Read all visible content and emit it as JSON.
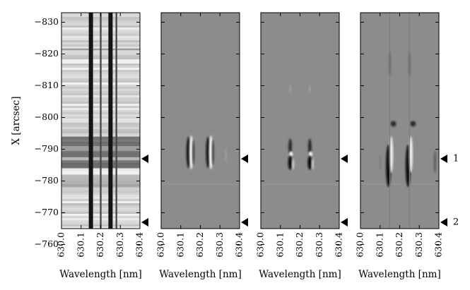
{
  "chart_data": [
    {
      "type": "heatmap",
      "panel": 1,
      "title": "",
      "xlabel": "Wavelength [nm]",
      "ylabel": "X [arcsec]",
      "xlim": [
        630.0,
        630.4
      ],
      "ylim": [
        -765,
        -833
      ],
      "x_ticks": [
        "630.0",
        "630.1",
        "630.2",
        "630.3",
        "630.4"
      ],
      "y_ticks": [
        "−830",
        "−820",
        "−810",
        "−800",
        "−790",
        "−780",
        "−770",
        "−760"
      ],
      "y_tick_values": [
        -830,
        -820,
        -810,
        -800,
        -790,
        -780,
        -770,
        -760
      ],
      "absorption_lines_nm": [
        630.15,
        630.25
      ],
      "telluric_lines_nm": [
        630.2,
        630.28
      ],
      "dark_band_arcsec": [
        -794,
        -784
      ],
      "markers": [
        {
          "y": -787,
          "label": ""
        },
        {
          "y": -767,
          "label": ""
        }
      ]
    },
    {
      "type": "heatmap",
      "panel": 2,
      "title": "",
      "xlabel": "Wavelength [nm]",
      "xlim": [
        630.0,
        630.4
      ],
      "x_ticks": [
        "630.0",
        "630.1",
        "630.2",
        "630.3",
        "630.4"
      ],
      "feature_lines_nm": [
        630.15,
        630.25
      ],
      "feature_center_arcsec": -789,
      "markers": [
        {
          "y": -787,
          "label": ""
        },
        {
          "y": -767,
          "label": ""
        }
      ]
    },
    {
      "type": "heatmap",
      "panel": 3,
      "title": "",
      "xlabel": "Wavelength [nm]",
      "xlim": [
        630.0,
        630.4
      ],
      "x_ticks": [
        "630.0",
        "630.1",
        "630.2",
        "630.3",
        "630.4"
      ],
      "feature_lines_nm": [
        630.15,
        630.25
      ],
      "feature_center_arcsec": -788,
      "markers": [
        {
          "y": -787,
          "label": ""
        },
        {
          "y": -767,
          "label": ""
        }
      ]
    },
    {
      "type": "heatmap",
      "panel": 4,
      "title": "",
      "xlabel": "Wavelength [nm]",
      "xlim": [
        630.0,
        630.4
      ],
      "x_ticks": [
        "630.0",
        "630.1",
        "630.2",
        "630.3",
        "630.4"
      ],
      "feature_lines_nm": [
        630.15,
        630.25
      ],
      "feature_center_arcsec": -787,
      "markers": [
        {
          "y": -787,
          "label": "1"
        },
        {
          "y": -767,
          "label": "2"
        }
      ]
    }
  ]
}
